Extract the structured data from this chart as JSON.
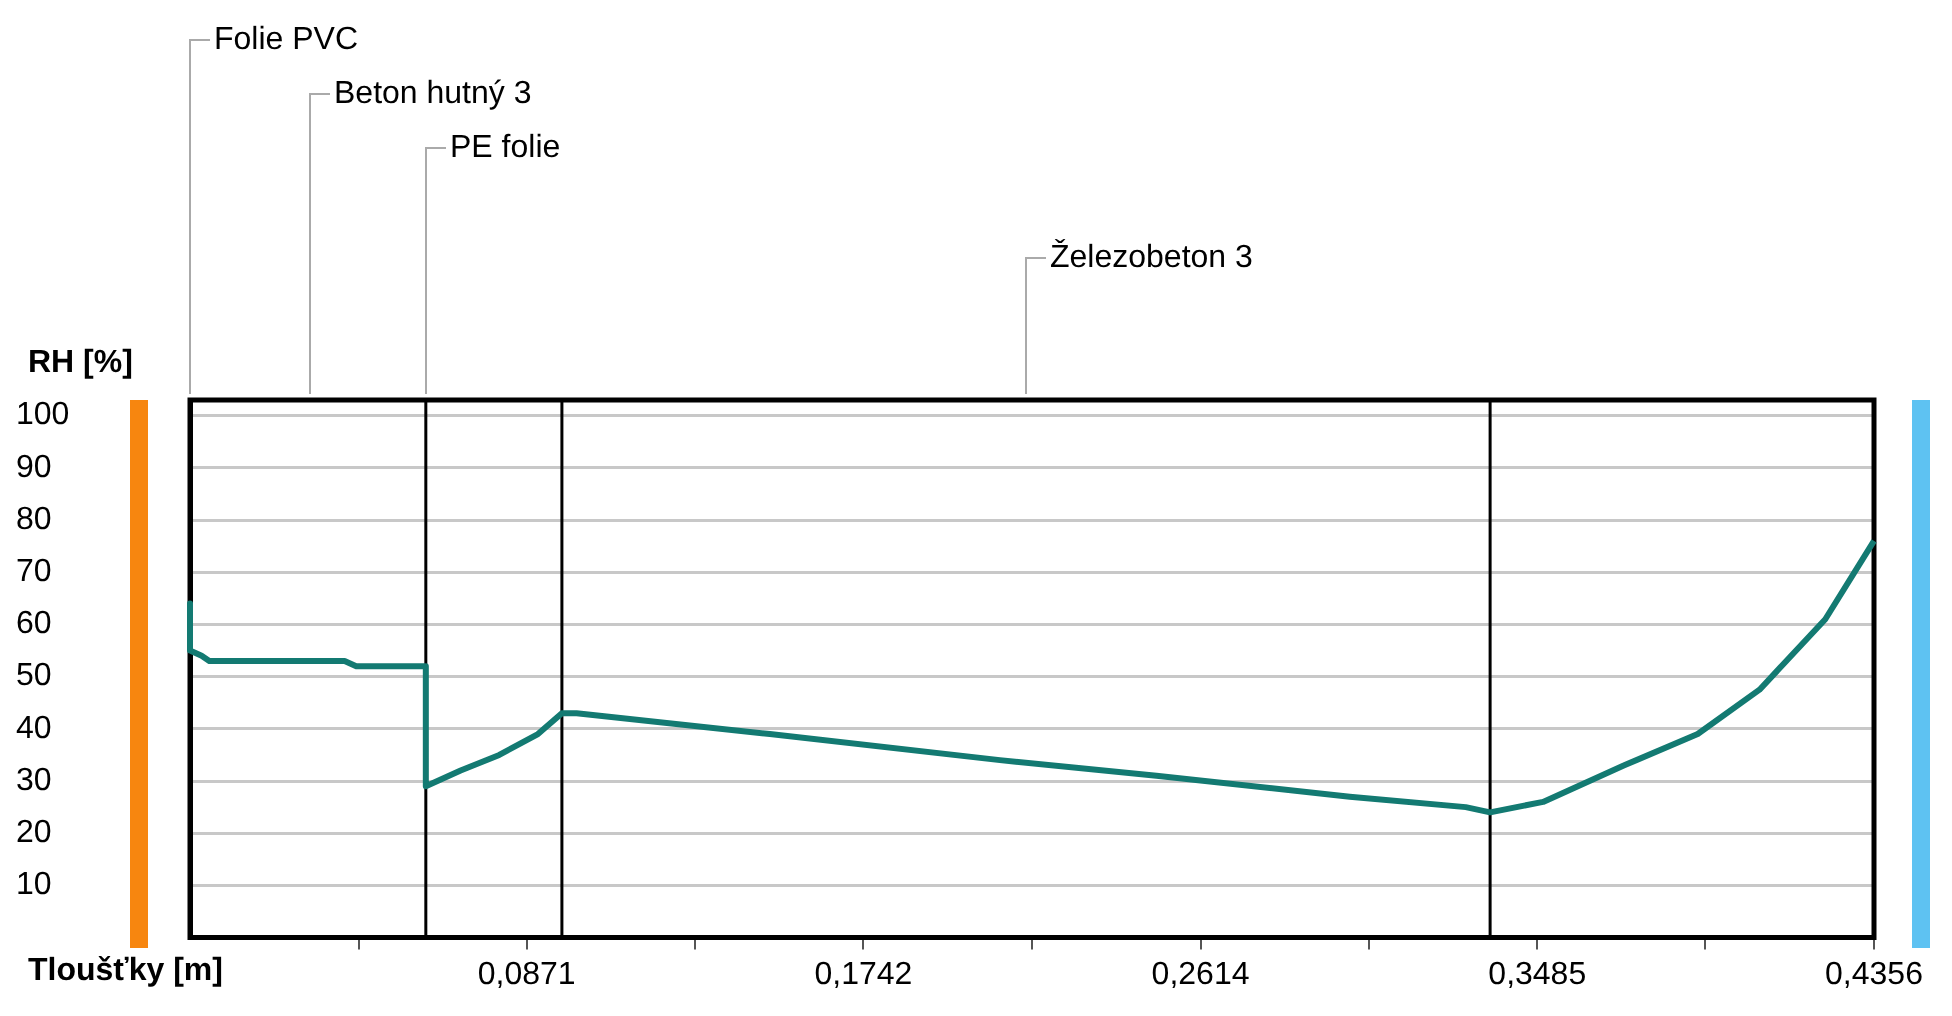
{
  "chart_data": {
    "type": "line",
    "xlabel": "Tloušťky [m]",
    "ylabel": "RH [%]",
    "x": [
      0,
      0,
      0.003,
      0.005,
      0.04,
      0.043,
      0.061,
      0.061,
      0.07,
      0.08,
      0.09,
      0.0962,
      0.1,
      0.15,
      0.2095,
      0.25,
      0.3,
      0.33,
      0.3363,
      0.35,
      0.371,
      0.39,
      0.406,
      0.423,
      0.4356
    ],
    "series": [
      {
        "color": "#137a72",
        "values": [
          64,
          55,
          54,
          53,
          53,
          52,
          52,
          29,
          32,
          35,
          39,
          43,
          43,
          39,
          34,
          31,
          27,
          25,
          24,
          26,
          33,
          39,
          47.5,
          61,
          76
        ]
      }
    ],
    "xlim": [
      0,
      0.4356
    ],
    "ylim": [
      0,
      103
    ],
    "xticks": [
      {
        "value": 0.0436,
        "label": null
      },
      {
        "value": 0.0871,
        "label": "0,0871"
      },
      {
        "value": 0.1307,
        "label": null
      },
      {
        "value": 0.1742,
        "label": "0,1742"
      },
      {
        "value": 0.2178,
        "label": null
      },
      {
        "value": 0.2614,
        "label": "0,2614"
      },
      {
        "value": 0.3049,
        "label": null
      },
      {
        "value": 0.3485,
        "label": "0,3485"
      },
      {
        "value": 0.392,
        "label": null
      },
      {
        "value": 0.4356,
        "label": "0,4356"
      }
    ],
    "yticks": [
      10,
      20,
      30,
      40,
      50,
      60,
      70,
      80,
      90,
      100
    ],
    "grid": "y",
    "marker": "none",
    "line_style": "solid",
    "legend": false,
    "ref_lines": [
      {
        "axis": "x",
        "value": 0.061,
        "color": "#000000"
      },
      {
        "axis": "x",
        "value": 0.0962,
        "color": "#000000"
      },
      {
        "axis": "x",
        "value": 0.3363,
        "color": "#000000"
      }
    ],
    "annotations": [
      "Folie PVC",
      "Beton hutný 3",
      "PE folie",
      "Železobeton 3"
    ]
  }
}
